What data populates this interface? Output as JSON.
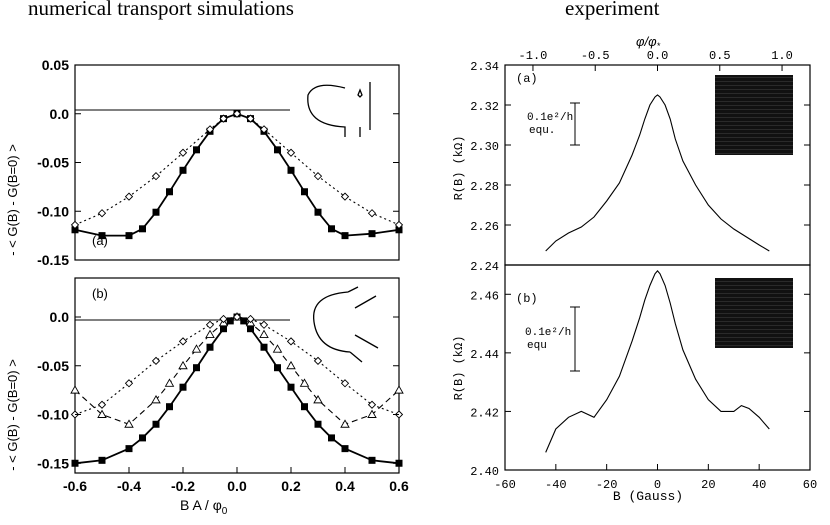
{
  "headings": {
    "left": "numerical transport simulations",
    "right": "experiment"
  },
  "chart_data": [
    {
      "id": "sim-a",
      "type": "line",
      "panel_label": "(a)",
      "ylabel": "- < G(B) - G(B=0) >",
      "xlim": [
        -0.6,
        0.6
      ],
      "ylim": [
        -0.15,
        0.05
      ],
      "yticks": [
        "0.05",
        "0.0",
        "-0.05",
        "-0.10",
        "-0.15"
      ],
      "yticks_values": [
        0.05,
        0.0,
        -0.05,
        -0.1,
        -0.15
      ],
      "series": [
        {
          "marker": "square-filled",
          "line": "solid",
          "x": [
            -0.6,
            -0.5,
            -0.4,
            -0.35,
            -0.3,
            -0.25,
            -0.2,
            -0.15,
            -0.1,
            -0.05,
            0.0,
            0.05,
            0.1,
            0.15,
            0.2,
            0.25,
            0.3,
            0.35,
            0.4,
            0.5,
            0.6
          ],
          "y": [
            -0.119,
            -0.125,
            -0.125,
            -0.118,
            -0.101,
            -0.08,
            -0.058,
            -0.037,
            -0.018,
            -0.005,
            0.0,
            -0.005,
            -0.018,
            -0.037,
            -0.058,
            -0.08,
            -0.101,
            -0.118,
            -0.125,
            -0.123,
            -0.119
          ]
        },
        {
          "marker": "diamond-open",
          "line": "dotted",
          "x": [
            -0.6,
            -0.5,
            -0.4,
            -0.3,
            -0.2,
            -0.1,
            -0.05,
            0.0,
            0.05,
            0.1,
            0.2,
            0.3,
            0.4,
            0.5,
            0.6
          ],
          "y": [
            -0.114,
            -0.102,
            -0.085,
            -0.064,
            -0.04,
            -0.016,
            -0.005,
            0.0,
            -0.005,
            -0.016,
            -0.04,
            -0.064,
            -0.085,
            -0.102,
            -0.114
          ]
        }
      ]
    },
    {
      "id": "sim-b",
      "type": "line",
      "panel_label": "(b)",
      "ylabel": "- < G(B) - G(B=0) >",
      "xlabel": "B A / φ",
      "xlabel_sub": "0",
      "xlim": [
        -0.6,
        0.6
      ],
      "ylim": [
        -0.16,
        0.04
      ],
      "xticks": [
        "-0.6",
        "-0.4",
        "-0.2",
        "0.0",
        "0.2",
        "0.4",
        "0.6"
      ],
      "xticks_values": [
        -0.6,
        -0.4,
        -0.2,
        0.0,
        0.2,
        0.4,
        0.6
      ],
      "yticks": [
        "0.0",
        "-0.05",
        "-0.10",
        "-0.15"
      ],
      "yticks_values": [
        0.0,
        -0.05,
        -0.1,
        -0.15
      ],
      "series": [
        {
          "marker": "square-filled",
          "line": "solid",
          "x": [
            -0.6,
            -0.5,
            -0.4,
            -0.35,
            -0.3,
            -0.25,
            -0.2,
            -0.15,
            -0.1,
            -0.05,
            -0.025,
            0.0,
            0.025,
            0.05,
            0.1,
            0.15,
            0.2,
            0.25,
            0.3,
            0.35,
            0.4,
            0.5,
            0.6
          ],
          "y": [
            -0.15,
            -0.147,
            -0.135,
            -0.124,
            -0.11,
            -0.092,
            -0.072,
            -0.052,
            -0.031,
            -0.012,
            -0.004,
            0.0,
            -0.004,
            -0.012,
            -0.031,
            -0.052,
            -0.072,
            -0.092,
            -0.11,
            -0.124,
            -0.135,
            -0.147,
            -0.15
          ]
        },
        {
          "marker": "triangle-open",
          "line": "dashed",
          "x": [
            -0.6,
            -0.5,
            -0.4,
            -0.3,
            -0.25,
            -0.2,
            -0.15,
            -0.1,
            -0.05,
            0.0,
            0.05,
            0.1,
            0.15,
            0.2,
            0.25,
            0.3,
            0.4,
            0.5,
            0.6
          ],
          "y": [
            -0.075,
            -0.1,
            -0.11,
            -0.085,
            -0.068,
            -0.05,
            -0.033,
            -0.018,
            -0.006,
            0.0,
            -0.006,
            -0.018,
            -0.033,
            -0.05,
            -0.068,
            -0.085,
            -0.11,
            -0.1,
            -0.075
          ]
        },
        {
          "marker": "diamond-open",
          "line": "dotted",
          "x": [
            -0.6,
            -0.5,
            -0.4,
            -0.3,
            -0.2,
            -0.1,
            -0.05,
            0.0,
            0.05,
            0.1,
            0.2,
            0.3,
            0.4,
            0.5,
            0.6
          ],
          "y": [
            -0.1,
            -0.09,
            -0.068,
            -0.045,
            -0.025,
            -0.008,
            -0.002,
            0.0,
            -0.002,
            -0.008,
            -0.025,
            -0.045,
            -0.068,
            -0.09,
            -0.1
          ]
        }
      ]
    },
    {
      "id": "exp-a",
      "type": "line",
      "panel_label": "(a)",
      "ylabel": "R(B)  (kΩ)",
      "top_axis_label": "φ/φ",
      "top_axis_label_sub": "*",
      "top_xticks": [
        "-1.0",
        "-0.5",
        "0.0",
        "0.5",
        "1.0"
      ],
      "top_xticks_values": [
        -1.0,
        -0.5,
        0.0,
        0.5,
        1.0
      ],
      "xlim": [
        -60,
        60
      ],
      "ylim": [
        2.24,
        2.34
      ],
      "yticks": [
        "2.34",
        "2.32",
        "2.30",
        "2.28",
        "2.26",
        "2.24"
      ],
      "yticks_values": [
        2.34,
        2.32,
        2.3,
        2.28,
        2.26,
        2.24
      ],
      "scale_bar_label": [
        "0.1e²/h",
        "equ."
      ],
      "series": [
        {
          "line": "solid",
          "x": [
            -44,
            -40,
            -35,
            -30,
            -25,
            -20,
            -15,
            -10,
            -7,
            -5,
            -3,
            -1,
            0,
            1,
            3,
            5,
            7,
            10,
            15,
            20,
            25,
            30,
            35,
            40,
            44
          ],
          "y": [
            2.247,
            2.252,
            2.256,
            2.259,
            2.264,
            2.272,
            2.281,
            2.295,
            2.305,
            2.313,
            2.32,
            2.324,
            2.325,
            2.324,
            2.32,
            2.313,
            2.303,
            2.292,
            2.28,
            2.27,
            2.263,
            2.258,
            2.254,
            2.25,
            2.247
          ]
        }
      ]
    },
    {
      "id": "exp-b",
      "type": "line",
      "panel_label": "(b)",
      "ylabel": "R(B)  (kΩ)",
      "xlabel": "B (Gauss)",
      "xlim": [
        -60,
        60
      ],
      "ylim": [
        2.4,
        2.47
      ],
      "xticks": [
        "-60",
        "-40",
        "-20",
        "0",
        "20",
        "40",
        "60"
      ],
      "xticks_values": [
        -60,
        -40,
        -20,
        0,
        20,
        40,
        60
      ],
      "yticks": [
        "2.46",
        "2.44",
        "2.42",
        "2.40"
      ],
      "yticks_values": [
        2.46,
        2.44,
        2.42,
        2.4
      ],
      "scale_bar_label": [
        "0.1e²/h",
        "equ"
      ],
      "series": [
        {
          "line": "solid",
          "x": [
            -44,
            -40,
            -35,
            -30,
            -25,
            -20,
            -15,
            -10,
            -7,
            -5,
            -3,
            -1,
            0,
            1,
            3,
            5,
            7,
            10,
            15,
            20,
            25,
            30,
            33,
            36,
            40,
            44
          ],
          "y": [
            2.406,
            2.414,
            2.418,
            2.42,
            2.418,
            2.424,
            2.432,
            2.444,
            2.452,
            2.458,
            2.463,
            2.467,
            2.468,
            2.467,
            2.463,
            2.457,
            2.45,
            2.441,
            2.431,
            2.424,
            2.42,
            2.42,
            2.422,
            2.421,
            2.418,
            2.414
          ]
        }
      ]
    }
  ]
}
